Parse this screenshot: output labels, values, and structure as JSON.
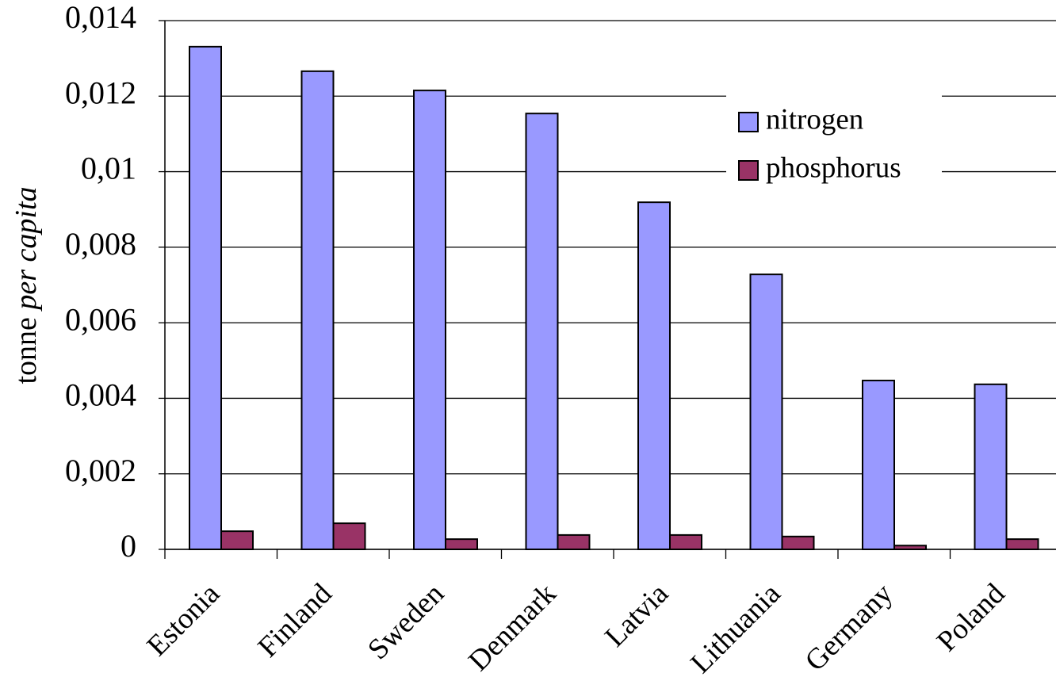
{
  "chart_data": {
    "type": "bar",
    "ylabel": "tonne per capita",
    "categories": [
      "Estonia",
      "Finland",
      "Sweden",
      "Denmark",
      "Latvia",
      "Lithuania",
      "Germany",
      "Poland"
    ],
    "series": [
      {
        "name": "nitrogen",
        "color": "#9999ff",
        "values": [
          0.01331,
          0.01266,
          0.01215,
          0.01154,
          0.00919,
          0.00728,
          0.00447,
          0.00437
        ]
      },
      {
        "name": "phosphorus",
        "color": "#993366",
        "values": [
          0.00048,
          0.00069,
          0.00027,
          0.00038,
          0.00038,
          0.00034,
          0.0001,
          0.00027
        ]
      }
    ],
    "ylim": [
      0,
      0.014
    ],
    "yticks": [
      0,
      {
        "value": 0.002,
        "label": "0,002"
      },
      {
        "value": 0.004,
        "label": "0,004"
      },
      {
        "value": 0.006,
        "label": "0,006"
      },
      {
        "value": 0.008,
        "label": "0,008"
      },
      {
        "value": 0.01,
        "label": "0,01"
      },
      {
        "value": 0.012,
        "label": "0,012"
      },
      {
        "value": 0.014,
        "label": "0,014"
      }
    ],
    "grid": true,
    "legend": "upper right"
  }
}
